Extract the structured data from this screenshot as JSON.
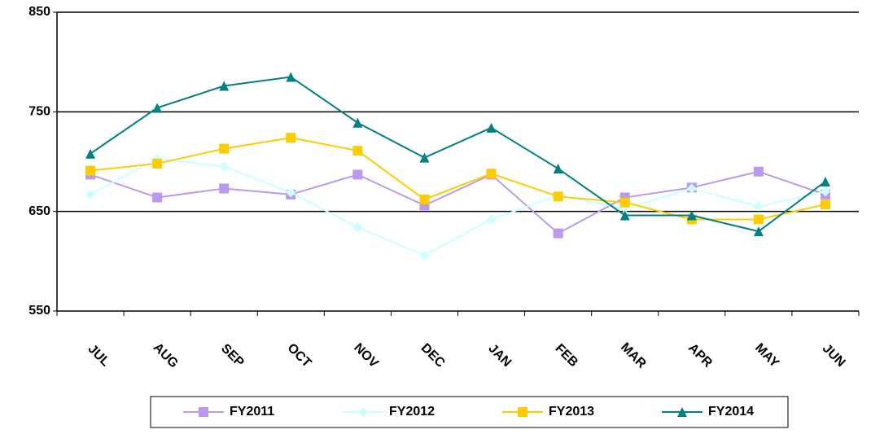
{
  "chart_data": {
    "type": "line",
    "categories": [
      "JUL",
      "AUG",
      "SEP",
      "OCT",
      "NOV",
      "DEC",
      "JAN",
      "FEB",
      "MAR",
      "APR",
      "MAY",
      "JUN"
    ],
    "series": [
      {
        "name": "FY2011",
        "color": "#bb99ee",
        "marker": "square",
        "values": [
          687,
          664,
          673,
          667,
          687,
          656,
          687,
          628,
          664,
          674,
          690,
          667
        ]
      },
      {
        "name": "FY2012",
        "color": "#ccffff",
        "marker": "diamond",
        "values": [
          667,
          703,
          695,
          669,
          634,
          606,
          642,
          666,
          653,
          673,
          655,
          670
        ]
      },
      {
        "name": "FY2013",
        "color": "#ffcc00",
        "marker": "square",
        "values": [
          691,
          698,
          713,
          724,
          711,
          662,
          688,
          665,
          659,
          642,
          642,
          657
        ]
      },
      {
        "name": "FY2014",
        "color": "#008080",
        "marker": "triangle",
        "values": [
          708,
          754,
          776,
          785,
          739,
          704,
          734,
          693,
          646,
          646,
          630,
          680
        ]
      }
    ],
    "ylim": [
      550,
      850
    ],
    "yticks": [
      550,
      650,
      750,
      850
    ],
    "grid": true
  }
}
